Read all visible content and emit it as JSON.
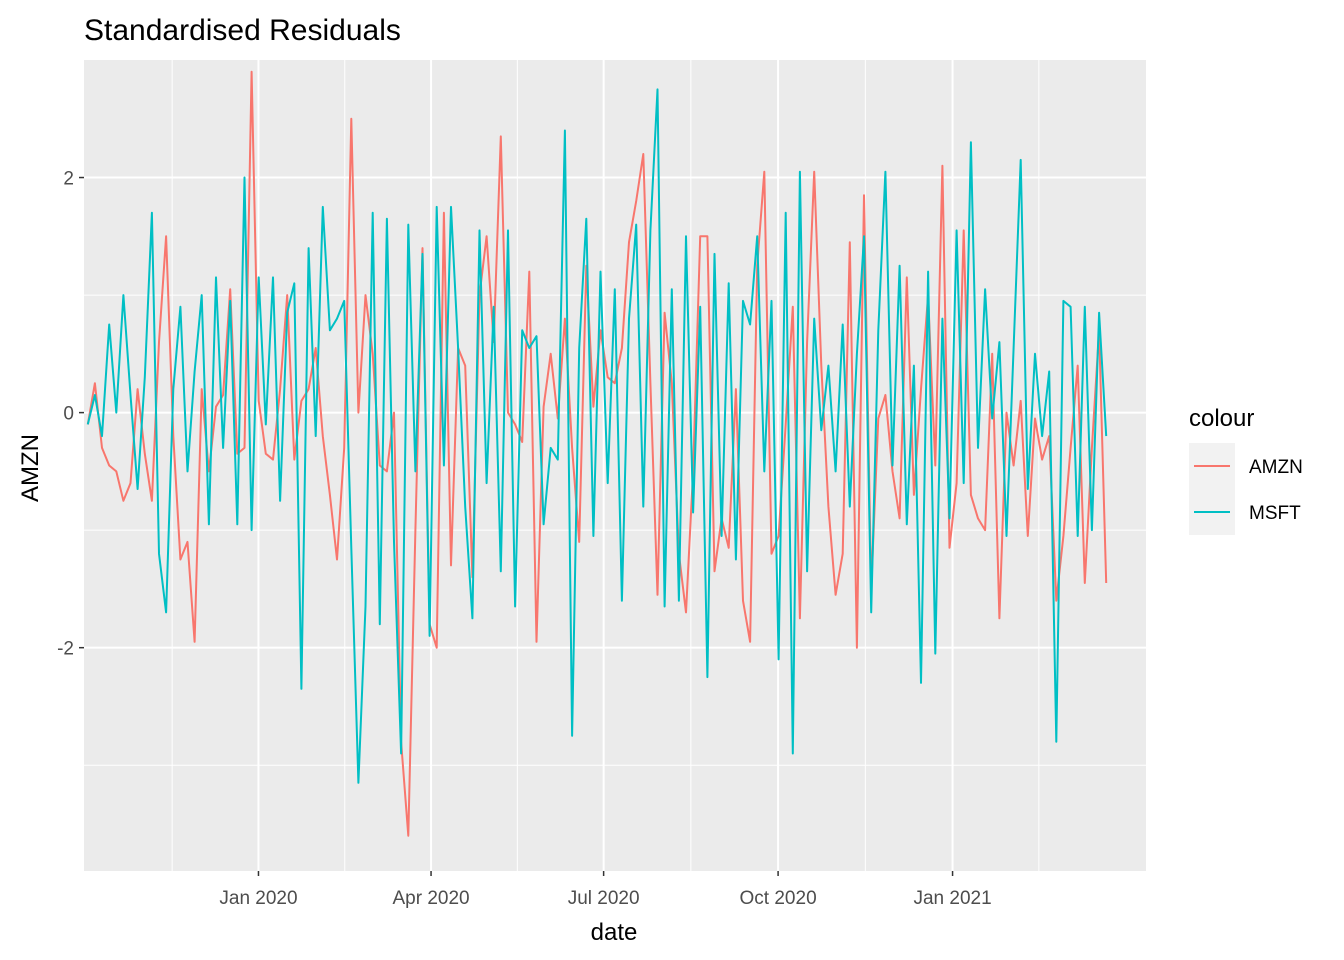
{
  "chart_data": {
    "type": "line",
    "title": "Standardised Residuals",
    "xlabel": "date",
    "ylabel": "AMZN",
    "x_range": [
      "2019-10-03",
      "2021-03-23"
    ],
    "xlim": [
      "2019-10-01",
      "2021-04-13"
    ],
    "ylim": [
      -3.9,
      3.0
    ],
    "x_ticks": [
      {
        "date": "2020-01-01",
        "label": "Jan 2020"
      },
      {
        "date": "2020-04-01",
        "label": "Apr 2020"
      },
      {
        "date": "2020-07-01",
        "label": "Jul 2020"
      },
      {
        "date": "2020-10-01",
        "label": "Oct 2020"
      },
      {
        "date": "2021-01-01",
        "label": "Jan 2021"
      }
    ],
    "y_ticks": [
      {
        "value": -2,
        "label": "-2"
      },
      {
        "value": 0,
        "label": "0"
      },
      {
        "value": 2,
        "label": "2"
      }
    ],
    "grid": true,
    "legend": {
      "title": "colour",
      "position": "right"
    },
    "series": [
      {
        "name": "AMZN",
        "color": "#F8766D",
        "values": [
          -0.1,
          0.25,
          -0.3,
          -0.45,
          -0.5,
          -0.75,
          -0.6,
          0.2,
          -0.35,
          -0.75,
          0.6,
          1.5,
          -0.2,
          -1.25,
          -1.1,
          -1.95,
          0.2,
          -0.5,
          0.05,
          0.15,
          1.05,
          -0.35,
          -0.3,
          2.9,
          0.1,
          -0.35,
          -0.4,
          0.2,
          1.0,
          -0.4,
          0.1,
          0.2,
          0.55,
          -0.2,
          -0.7,
          -1.25,
          -0.3,
          2.5,
          0.0,
          1.0,
          0.5,
          -0.45,
          -0.5,
          0.0,
          -2.8,
          -3.6,
          -1.0,
          1.4,
          -1.8,
          -2.0,
          1.7,
          -1.3,
          0.55,
          0.4,
          -1.4,
          1.0,
          1.5,
          0.6,
          2.35,
          0.0,
          -0.1,
          -0.25,
          1.2,
          -1.95,
          0.05,
          0.5,
          -0.05,
          0.8,
          -0.3,
          -1.1,
          1.25,
          0.05,
          0.7,
          0.3,
          0.25,
          0.55,
          1.45,
          1.8,
          2.2,
          0.25,
          -1.55,
          0.85,
          0.25,
          -1.2,
          -1.7,
          -0.5,
          1.5,
          1.5,
          -1.35,
          -0.9,
          -1.15,
          0.2,
          -1.6,
          -1.95,
          1.25,
          2.05,
          -1.2,
          -1.05,
          -0.1,
          0.9,
          -1.75,
          0.6,
          2.05,
          0.4,
          -0.8,
          -1.55,
          -1.2,
          1.45,
          -2.0,
          1.85,
          -1.5,
          -0.05,
          0.15,
          -0.5,
          -0.9,
          1.15,
          -0.7,
          0.2,
          1.0,
          -0.45,
          2.1,
          -1.15,
          -0.6,
          1.55,
          -0.7,
          -0.9,
          -1.0,
          0.5,
          -1.75,
          0.0,
          -0.45,
          0.1,
          -1.05,
          -0.05,
          -0.4,
          -0.2,
          -1.6,
          -1.05,
          -0.3,
          0.4,
          -1.45,
          -0.3,
          0.7,
          -1.45
        ]
      },
      {
        "name": "MSFT",
        "color": "#00BFC4",
        "values": [
          -0.1,
          0.15,
          -0.2,
          0.75,
          0.0,
          1.0,
          0.15,
          -0.65,
          0.3,
          1.7,
          -1.2,
          -1.7,
          0.2,
          0.9,
          -0.5,
          0.35,
          1.0,
          -0.95,
          1.15,
          -0.3,
          0.95,
          -0.95,
          2.0,
          -1.0,
          1.15,
          -0.1,
          1.15,
          -0.75,
          0.85,
          1.1,
          -2.35,
          1.4,
          -0.2,
          1.75,
          0.7,
          0.8,
          0.95,
          -1.15,
          -3.15,
          -1.65,
          1.7,
          -1.8,
          1.65,
          -1.1,
          -2.9,
          1.6,
          -0.5,
          1.35,
          -1.9,
          1.75,
          -0.45,
          1.75,
          0.55,
          -0.8,
          -1.75,
          1.55,
          -0.6,
          0.9,
          -1.35,
          1.55,
          -1.65,
          0.7,
          0.55,
          0.65,
          -0.95,
          -0.3,
          -0.4,
          2.4,
          -2.75,
          0.55,
          1.65,
          -1.05,
          1.2,
          -0.6,
          1.05,
          -1.6,
          0.8,
          1.6,
          -0.8,
          1.55,
          2.75,
          -1.65,
          1.05,
          -1.6,
          1.5,
          -0.85,
          0.9,
          -2.25,
          1.35,
          -1.05,
          1.1,
          -1.25,
          0.95,
          0.75,
          1.5,
          -0.5,
          0.95,
          -2.1,
          1.7,
          -2.9,
          2.05,
          -1.35,
          0.8,
          -0.15,
          0.4,
          -0.5,
          0.75,
          -0.8,
          0.5,
          1.5,
          -1.7,
          0.7,
          2.05,
          -0.45,
          1.25,
          -0.95,
          0.4,
          -2.3,
          1.2,
          -2.05,
          0.8,
          -0.9,
          1.55,
          -0.6,
          2.3,
          -0.3,
          1.05,
          -0.05,
          0.6,
          -1.05,
          0.55,
          2.15,
          -0.65,
          0.5,
          -0.2,
          0.35,
          -2.8,
          0.95,
          0.9,
          -1.05,
          0.9,
          -1.0,
          0.85,
          -0.2
        ]
      }
    ]
  }
}
